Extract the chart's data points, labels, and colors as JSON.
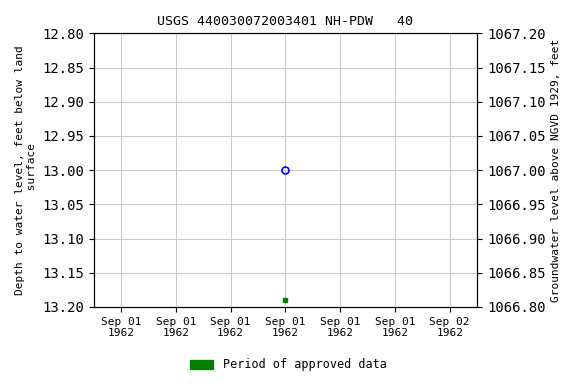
{
  "title": "USGS 440030072003401 NH-PDW   40",
  "ylabel_left": "Depth to water level, feet below land\n surface",
  "ylabel_right": "Groundwater level above NGVD 1929, feet",
  "ylim_left_top": 12.8,
  "ylim_left_bottom": 13.2,
  "ylim_right_top": 1067.2,
  "ylim_right_bottom": 1066.8,
  "yticks_left": [
    12.8,
    12.85,
    12.9,
    12.95,
    13.0,
    13.05,
    13.1,
    13.15,
    13.2
  ],
  "yticks_right": [
    1067.2,
    1067.15,
    1067.1,
    1067.05,
    1067.0,
    1066.95,
    1066.9,
    1066.85,
    1066.8
  ],
  "ytick_labels_right": [
    "1067.20",
    "1067.15",
    "1067.10",
    "1067.05",
    "1067.00",
    "1066.95",
    "1066.90",
    "1066.85",
    "1066.80"
  ],
  "data_open_x": 3.0,
  "data_open_y": 13.0,
  "data_green_x": 3.0,
  "data_green_y": 13.19,
  "x_ticks": [
    0,
    1,
    2,
    3,
    4,
    5,
    6
  ],
  "x_tick_labels": [
    "Sep 01\n1962",
    "Sep 01\n1962",
    "Sep 01\n1962",
    "Sep 01\n1962",
    "Sep 01\n1962",
    "Sep 01\n1962",
    "Sep 02\n1962"
  ],
  "x_lim": [
    -0.5,
    6.5
  ],
  "grid_color": "#c8c8c8",
  "bg_color": "#ffffff",
  "legend_label": "Period of approved data",
  "legend_color": "#008000"
}
